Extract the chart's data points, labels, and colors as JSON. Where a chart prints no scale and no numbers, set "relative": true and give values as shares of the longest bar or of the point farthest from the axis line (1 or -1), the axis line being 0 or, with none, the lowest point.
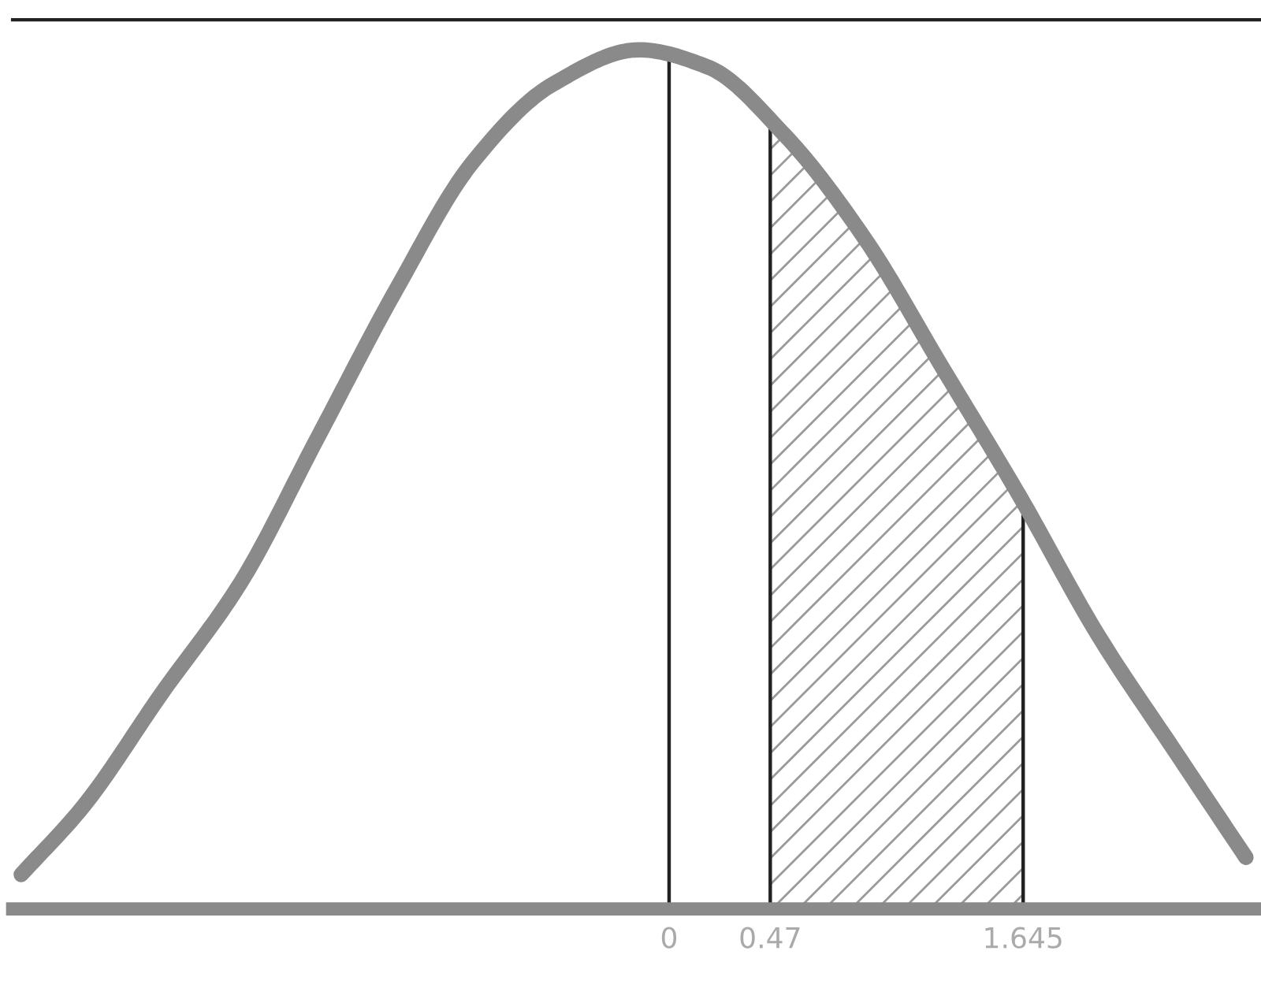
{
  "chart_data": {
    "type": "line",
    "relative": true,
    "x": [
      -3.01,
      -2.72,
      -2.36,
      -1.99,
      -1.63,
      -1.27,
      -0.91,
      -0.54,
      -0.14,
      0.18,
      0.54,
      0.91,
      1.27,
      1.63,
      1.99,
      2.36,
      2.68
    ],
    "series": [
      {
        "color": "#8a8a8a",
        "values": [
          0.04,
          0.12,
          0.25,
          0.38,
          0.55,
          0.72,
          0.87,
          0.96,
          1.0,
          0.98,
          0.9,
          0.78,
          0.63,
          0.48,
          0.32,
          0.18,
          0.06
        ]
      },
      {
        "type": "area",
        "color": "#9a9a9a",
        "x": [
          0.47,
          0.8,
          1.1,
          1.4,
          1.645
        ],
        "values": [
          0.91,
          0.81,
          0.7,
          0.58,
          0.48
        ]
      }
    ],
    "xlim": [
      -3.05,
      2.75
    ],
    "xticks": [
      0,
      0.47,
      1.645
    ],
    "tick_labels": "x",
    "grid": false,
    "marker": "none",
    "line_style": "solid",
    "ref_lines": [
      {
        "axis": "x",
        "value": 0,
        "color": "#222222"
      },
      {
        "axis": "x",
        "value": 0.47,
        "color": "#222222"
      },
      {
        "axis": "x",
        "value": 1.645,
        "color": "#222222"
      }
    ]
  }
}
